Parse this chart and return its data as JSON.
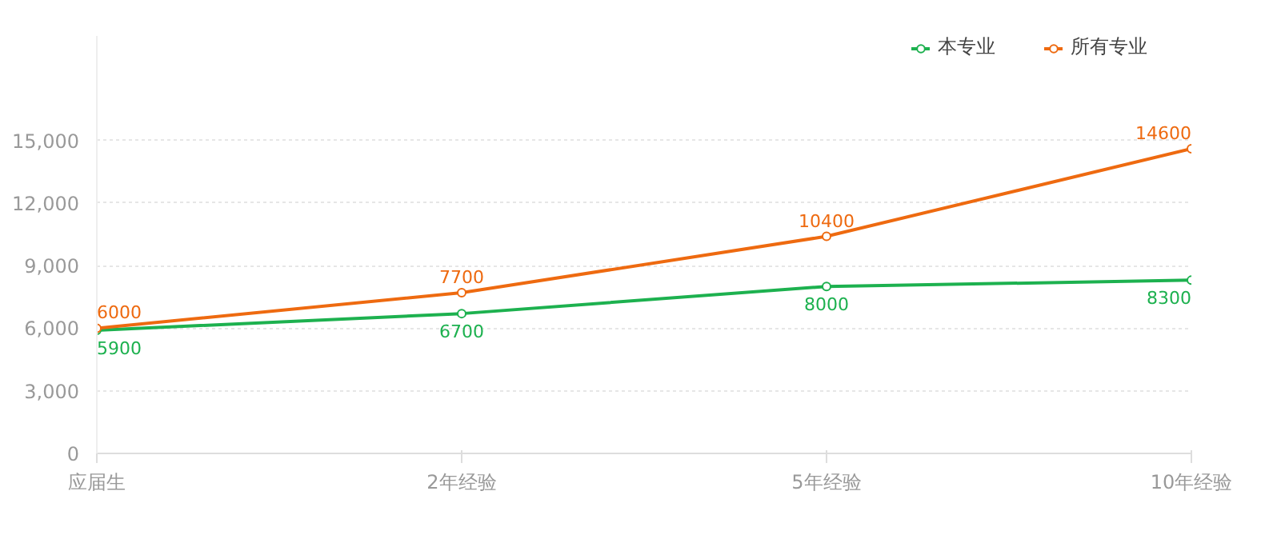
{
  "chart_data": {
    "type": "line",
    "categories": [
      "应届生",
      "2年经验",
      "5年经验",
      "10年经验"
    ],
    "series": [
      {
        "name": "本专业",
        "color": "#1db14f",
        "values": [
          5900,
          6700,
          8000,
          8300
        ]
      },
      {
        "name": "所有专业",
        "color": "#ee6a10",
        "values": [
          6000,
          7700,
          10400,
          14600
        ]
      }
    ],
    "ylim": [
      0,
      20000
    ],
    "yticks": [
      0,
      {
        "value": 3000,
        "label": "3,000"
      },
      {
        "value": 6000,
        "label": "6,000"
      },
      {
        "value": 9000,
        "label": "9,000"
      },
      {
        "value": 12000,
        "label": "12,000"
      },
      {
        "value": 15000,
        "label": "15,000"
      }
    ],
    "grid": "y",
    "legend": "top right",
    "marker": "circle",
    "data_labels": true
  }
}
